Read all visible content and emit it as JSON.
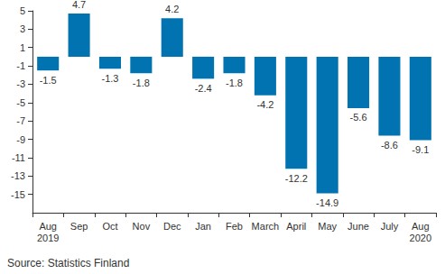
{
  "chart_data": {
    "type": "bar",
    "categories": [
      "Aug\n2019",
      "Sep",
      "Oct",
      "Nov",
      "Dec",
      "Jan",
      "Feb",
      "March",
      "April",
      "May",
      "June",
      "July",
      "Aug\n2020"
    ],
    "values": [
      -1.5,
      4.7,
      -1.3,
      -1.8,
      4.2,
      -2.4,
      -1.8,
      -4.2,
      -12.2,
      -14.9,
      -5.6,
      -8.6,
      -9.1
    ],
    "color": "#0073b0",
    "ylim": [
      -17,
      5
    ],
    "yticks": [
      -15,
      -13,
      -11,
      -9,
      -7,
      -5,
      -3,
      -1,
      1,
      3,
      5
    ],
    "grid": false,
    "data_labels": true,
    "annotations": [
      "Source: Statistics Finland"
    ]
  }
}
